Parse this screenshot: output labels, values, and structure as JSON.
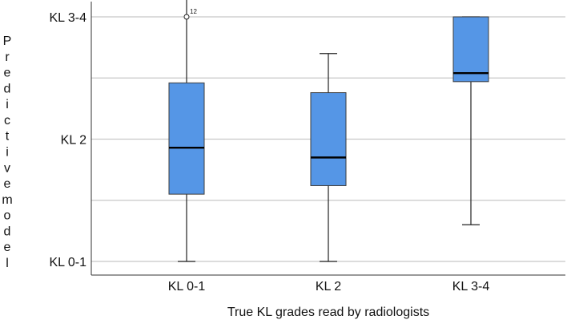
{
  "chart_data": {
    "type": "boxplot",
    "title": "",
    "xlabel": "True KL grades read by radiologists",
    "ylabel": "Predictive model",
    "categories": [
      "KL 0-1",
      "KL 2",
      "KL 3-4"
    ],
    "y_ticks": [
      {
        "value": 0,
        "label": "KL 0-1"
      },
      {
        "value": 1,
        "label": "KL 2"
      },
      {
        "value": 2,
        "label": "KL 3-4"
      }
    ],
    "y_range": [
      -0.22,
      2.1
    ],
    "grid": {
      "horizontal": true,
      "interval": 0.5
    },
    "boxes": [
      {
        "category": "KL 0-1",
        "whisker_low": 0.0,
        "q1": 0.55,
        "median": 0.93,
        "q3": 1.46,
        "whisker_high": 2.21
      },
      {
        "category": "KL 2",
        "whisker_low": 0.0,
        "q1": 0.62,
        "median": 0.85,
        "q3": 1.38,
        "whisker_high": 1.7
      },
      {
        "category": "KL 3-4",
        "whisker_low": 0.3,
        "q1": 1.47,
        "median": 1.54,
        "q3": 2.0,
        "whisker_high": 2.0
      }
    ],
    "outliers": [
      {
        "category": "KL 0-1",
        "value": 2.0,
        "label": "12"
      }
    ],
    "colors": {
      "box_fill": "#5596e6",
      "box_stroke": "#3c3c3c",
      "grid": "#c8c8c8",
      "axis": "#333333"
    }
  }
}
